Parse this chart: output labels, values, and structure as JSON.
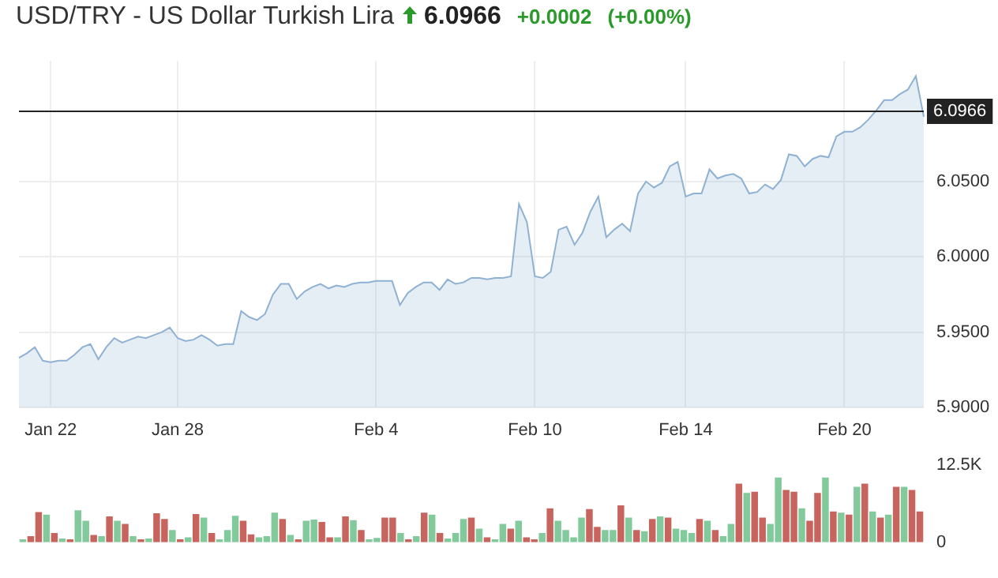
{
  "chart_data": [
    {
      "type": "area",
      "title": "USD/TRY - US Dollar Turkish Lira",
      "annotations": [
        "6.0966",
        "+0.0002",
        "(+0.00%)"
      ],
      "color": "#8fb1d3",
      "categories": [
        null,
        null,
        null,
        null,
        "Jan 22",
        null,
        null,
        null,
        null,
        null,
        null,
        null,
        null,
        null,
        null,
        null,
        null,
        null,
        null,
        null,
        "Jan 28",
        null,
        null,
        null,
        null,
        null,
        null,
        null,
        null,
        null,
        null,
        null,
        null,
        null,
        null,
        null,
        null,
        null,
        null,
        null,
        null,
        null,
        null,
        null,
        null,
        "Feb 4",
        null,
        null,
        null,
        null,
        null,
        null,
        null,
        null,
        null,
        null,
        null,
        null,
        null,
        null,
        null,
        null,
        null,
        null,
        null,
        "Feb 10",
        null,
        null,
        null,
        null,
        null,
        null,
        null,
        null,
        null,
        null,
        null,
        null,
        null,
        null,
        null,
        null,
        null,
        null,
        "Feb 14",
        null,
        null,
        null,
        null,
        null,
        null,
        null,
        null,
        null,
        null,
        null,
        null,
        null,
        null,
        null,
        null,
        null,
        null,
        null,
        "Feb 20",
        null,
        null,
        null,
        null,
        null,
        null,
        null,
        null,
        null,
        null
      ],
      "values": [
        5.933,
        5.936,
        5.94,
        5.931,
        5.93,
        5.931,
        5.931,
        5.935,
        5.94,
        5.942,
        5.932,
        5.94,
        5.946,
        5.943,
        5.945,
        5.947,
        5.946,
        5.948,
        5.95,
        5.953,
        5.946,
        5.944,
        5.945,
        5.948,
        5.945,
        5.941,
        5.942,
        5.942,
        5.964,
        5.96,
        5.958,
        5.962,
        5.975,
        5.982,
        5.982,
        5.972,
        5.977,
        5.98,
        5.982,
        5.979,
        5.981,
        5.98,
        5.982,
        5.983,
        5.983,
        5.984,
        5.984,
        5.984,
        5.968,
        5.976,
        5.98,
        5.983,
        5.983,
        5.978,
        5.985,
        5.982,
        5.983,
        5.986,
        5.986,
        5.985,
        5.986,
        5.986,
        5.987,
        6.035,
        6.023,
        5.987,
        5.986,
        5.99,
        6.018,
        6.02,
        6.008,
        6.016,
        6.03,
        6.04,
        6.013,
        6.018,
        6.022,
        6.017,
        6.042,
        6.05,
        6.046,
        6.049,
        6.06,
        6.063,
        6.04,
        6.042,
        6.042,
        6.058,
        6.052,
        6.054,
        6.055,
        6.052,
        6.042,
        6.043,
        6.048,
        6.045,
        6.051,
        6.068,
        6.067,
        6.06,
        6.065,
        6.067,
        6.066,
        6.08,
        6.083,
        6.083,
        6.086,
        6.091,
        6.097,
        6.104,
        6.104,
        6.108,
        6.111,
        6.12,
        6.093
      ],
      "ylim": [
        5.9,
        6.13
      ],
      "yticks": [
        {
          "value": 5.9,
          "label": "5.9000"
        },
        {
          "value": 5.95,
          "label": "5.9500"
        },
        {
          "value": 6.0,
          "label": "6.0000"
        },
        {
          "value": 6.05,
          "label": "6.0500"
        }
      ],
      "ref_lines": [
        {
          "axis": "y",
          "value": 6.0966,
          "label": "6.0966",
          "color": "#222222"
        }
      ],
      "grid": true
    },
    {
      "type": "bar",
      "categories": [
        null,
        null,
        null,
        null,
        null,
        null,
        null,
        null,
        null,
        null,
        null,
        null,
        null,
        null,
        null,
        null,
        null,
        null,
        null,
        null,
        null,
        null,
        null,
        null,
        null,
        null,
        null,
        null,
        null,
        null,
        null,
        null,
        null,
        null,
        null,
        null,
        null,
        null,
        null,
        null,
        null,
        null,
        null,
        null,
        null,
        null,
        null,
        null,
        null,
        null,
        null,
        null,
        null,
        null,
        null,
        null,
        null,
        null,
        null,
        null,
        null,
        null,
        null,
        null,
        null,
        null,
        null,
        null,
        null,
        null,
        null,
        null,
        null,
        null,
        null,
        null,
        null,
        null,
        null,
        null,
        null,
        null,
        null,
        null,
        null,
        null,
        null,
        null,
        null,
        null,
        null,
        null,
        null,
        null,
        null,
        null,
        null,
        null,
        null,
        null,
        null,
        null,
        null,
        null,
        null,
        null,
        null,
        null,
        null,
        null,
        null,
        null,
        null,
        null,
        null
      ],
      "values": [
        500,
        1000,
        4900,
        4500,
        1500,
        600,
        500,
        5200,
        3500,
        1200,
        1000,
        4200,
        3500,
        3000,
        1000,
        500,
        600,
        4700,
        3800,
        2000,
        500,
        800,
        4600,
        4000,
        1500,
        500,
        2000,
        4300,
        3500,
        1300,
        800,
        1000,
        4800,
        3800,
        1200,
        500,
        3500,
        3700,
        3300,
        800,
        800,
        4200,
        3600,
        2000,
        500,
        700,
        4000,
        4000,
        1500,
        500,
        1000,
        4800,
        4500,
        1500,
        600,
        1500,
        3800,
        4000,
        2200,
        800,
        500,
        3000,
        2200,
        3500,
        800,
        500,
        1500,
        5500,
        3500,
        2000,
        800,
        4000,
        5400,
        2500,
        2000,
        2000,
        6000,
        4000,
        2000,
        1800,
        3800,
        4200,
        4000,
        2200,
        2000,
        1500,
        3800,
        3500,
        2000,
        1000,
        3000,
        9500,
        8000,
        8200,
        4000,
        3000,
        10500,
        8500,
        8200,
        5500,
        3500,
        8000,
        10500,
        5000,
        4800,
        4500,
        9000,
        9500,
        5000,
        4000,
        4500,
        9000,
        9000,
        8500,
        5000
      ],
      "colors": [
        "#82c99c",
        "#c8645e",
        "#c8645e",
        "#82c99c",
        "#c8645e",
        "#82c99c",
        "#c8645e",
        "#82c99c",
        "#82c99c",
        "#c8645e",
        "#82c99c",
        "#c8645e",
        "#82c99c",
        "#c8645e",
        "#82c99c",
        "#c8645e",
        "#82c99c",
        "#c8645e",
        "#c8645e",
        "#82c99c",
        "#c8645e",
        "#82c99c",
        "#c8645e",
        "#82c99c",
        "#c8645e",
        "#82c99c",
        "#82c99c",
        "#82c99c",
        "#c8645e",
        "#c8645e",
        "#82c99c",
        "#82c99c",
        "#82c99c",
        "#c8645e",
        "#82c99c",
        "#c8645e",
        "#82c99c",
        "#82c99c",
        "#c8645e",
        "#c8645e",
        "#82c99c",
        "#c8645e",
        "#82c99c",
        "#c8645e",
        "#82c99c",
        "#82c99c",
        "#c8645e",
        "#c8645e",
        "#82c99c",
        "#c8645e",
        "#82c99c",
        "#c8645e",
        "#82c99c",
        "#c8645e",
        "#82c99c",
        "#82c99c",
        "#82c99c",
        "#c8645e",
        "#82c99c",
        "#c8645e",
        "#82c99c",
        "#82c99c",
        "#c8645e",
        "#82c99c",
        "#c8645e",
        "#c8645e",
        "#82c99c",
        "#c8645e",
        "#82c99c",
        "#82c99c",
        "#82c99c",
        "#82c99c",
        "#c8645e",
        "#c8645e",
        "#82c99c",
        "#82c99c",
        "#c8645e",
        "#82c99c",
        "#c8645e",
        "#82c99c",
        "#c8645e",
        "#82c99c",
        "#c8645e",
        "#82c99c",
        "#82c99c",
        "#82c99c",
        "#c8645e",
        "#82c99c",
        "#c8645e",
        "#82c99c",
        "#82c99c",
        "#c8645e",
        "#82c99c",
        "#c8645e",
        "#c8645e",
        "#82c99c",
        "#82c99c",
        "#c8645e",
        "#c8645e",
        "#82c99c",
        "#c8645e",
        "#c8645e",
        "#82c99c",
        "#c8645e",
        "#82c99c",
        "#c8645e",
        "#82c99c",
        "#c8645e",
        "#82c99c",
        "#c8645e",
        "#82c99c",
        "#c8645e",
        "#82c99c",
        "#c8645e",
        "#c8645e"
      ],
      "ylim": [
        0,
        12500
      ],
      "yticks": [
        {
          "value": 0,
          "label": "0"
        },
        {
          "value": 12500,
          "label": "12.5K"
        }
      ],
      "tick_labels": "y"
    }
  ]
}
